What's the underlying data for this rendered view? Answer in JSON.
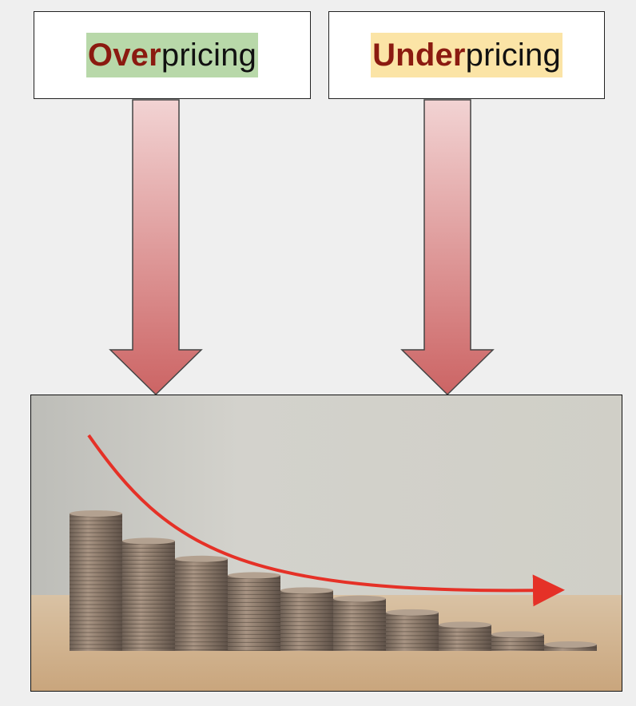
{
  "labels": {
    "left": {
      "emphasis": "Over",
      "rest": "pricing",
      "highlight_color": "#b8d8a9",
      "emphasis_color": "#8b1a10"
    },
    "right": {
      "emphasis": "Under",
      "rest": "pricing",
      "highlight_color": "#fbe4a6",
      "emphasis_color": "#8b1a10"
    }
  },
  "arrows": {
    "gradient_top": "#f2d3d3",
    "gradient_bottom": "#cc6464",
    "stroke": "#444444",
    "direction": "down"
  },
  "photo": {
    "subject": "stacks of coins decreasing in height with a falling red trend arrow",
    "coin_stack_heights": [
      1.0,
      0.8,
      0.67,
      0.55,
      0.44,
      0.38,
      0.28,
      0.19,
      0.12,
      0.04
    ],
    "trend_arrow_color": "#e53127"
  }
}
